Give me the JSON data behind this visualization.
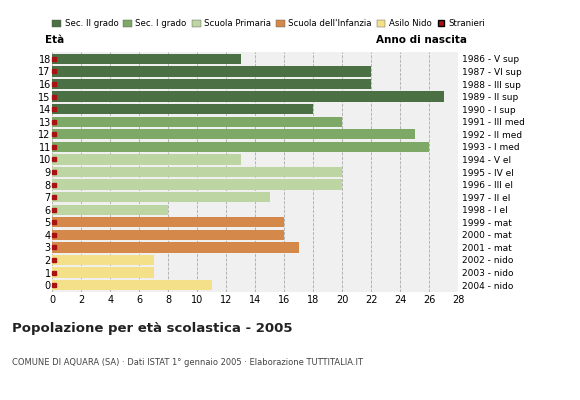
{
  "ages": [
    18,
    17,
    16,
    15,
    14,
    13,
    12,
    11,
    10,
    9,
    8,
    7,
    6,
    5,
    4,
    3,
    2,
    1,
    0
  ],
  "values": [
    13,
    22,
    22,
    27,
    18,
    20,
    25,
    26,
    13,
    20,
    20,
    15,
    8,
    16,
    16,
    17,
    7,
    7,
    11
  ],
  "categories": {
    "sec2": [
      18,
      17,
      16,
      15,
      14
    ],
    "sec1": [
      13,
      12,
      11
    ],
    "primaria": [
      10,
      9,
      8,
      7,
      6
    ],
    "infanzia": [
      5,
      4,
      3
    ],
    "nido": [
      2,
      1,
      0
    ]
  },
  "colors": {
    "sec2": "#4a7043",
    "sec1": "#7da865",
    "primaria": "#bdd5a3",
    "infanzia": "#d4894a",
    "nido": "#f5e08a",
    "stranieri": "#aa1111"
  },
  "right_labels": [
    "1986 - V sup",
    "1987 - VI sup",
    "1988 - III sup",
    "1989 - II sup",
    "1990 - I sup",
    "1991 - III med",
    "1992 - II med",
    "1993 - I med",
    "1994 - V el",
    "1995 - IV el",
    "1996 - III el",
    "1997 - II el",
    "1998 - I el",
    "1999 - mat",
    "2000 - mat",
    "2001 - mat",
    "2002 - nido",
    "2003 - nido",
    "2004 - nido"
  ],
  "title": "Popolazione per età scolastica - 2005",
  "subtitle": "COMUNE DI AQUARA (SA) · Dati ISTAT 1° gennaio 2005 · Elaborazione TUTTITALIA.IT",
  "xlabel_eta": "Età",
  "xlabel_anno": "Anno di nascita",
  "xlim": [
    0,
    28
  ],
  "xticks": [
    0,
    2,
    4,
    6,
    8,
    10,
    12,
    14,
    16,
    18,
    20,
    22,
    24,
    26,
    28
  ],
  "legend_labels": [
    "Sec. II grado",
    "Sec. I grado",
    "Scuola Primaria",
    "Scuola dell'Infanzia",
    "Asilo Nido",
    "Stranieri"
  ],
  "bg_color": "#ffffff",
  "plot_bg_color": "#f0f0f0"
}
